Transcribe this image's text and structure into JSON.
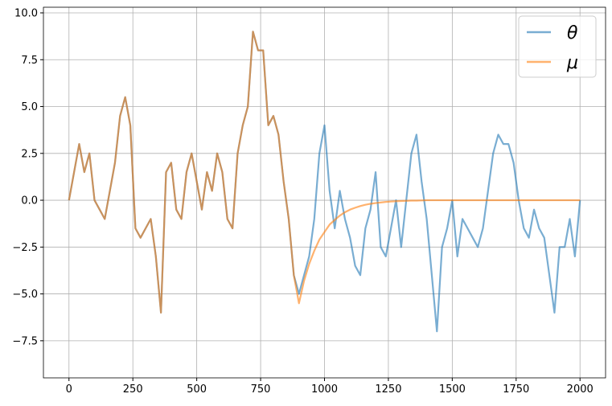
{
  "chart_data": {
    "type": "line",
    "x": [
      0,
      20,
      40,
      60,
      80,
      100,
      120,
      140,
      160,
      180,
      200,
      220,
      240,
      260,
      280,
      300,
      320,
      340,
      360,
      380,
      400,
      420,
      440,
      460,
      480,
      500,
      520,
      540,
      560,
      580,
      600,
      620,
      640,
      660,
      680,
      700,
      720,
      740,
      760,
      780,
      800,
      820,
      840,
      860,
      880,
      900,
      920,
      940,
      960,
      980,
      1000,
      1020,
      1040,
      1060,
      1080,
      1100,
      1120,
      1140,
      1160,
      1180,
      1200,
      1220,
      1240,
      1260,
      1280,
      1300,
      1320,
      1340,
      1360,
      1380,
      1400,
      1420,
      1440,
      1460,
      1480,
      1500,
      1520,
      1540,
      1560,
      1580,
      1600,
      1620,
      1640,
      1660,
      1680,
      1700,
      1720,
      1740,
      1760,
      1780,
      1800,
      1820,
      1840,
      1860,
      1880,
      1900,
      1920,
      1940,
      1960,
      1980,
      2000
    ],
    "series": [
      {
        "name": "θ",
        "color": "#1f77b4",
        "opacity": 0.6,
        "values": [
          0.0,
          1.5,
          3.0,
          1.5,
          2.5,
          0.0,
          -0.5,
          -1.0,
          0.5,
          2.0,
          4.5,
          5.5,
          4.0,
          -1.5,
          -2.0,
          -1.5,
          -1.0,
          -3.0,
          -6.0,
          1.5,
          2.0,
          -0.5,
          -1.0,
          1.5,
          2.5,
          1.0,
          -0.5,
          1.5,
          0.5,
          2.5,
          1.5,
          -1.0,
          -1.5,
          2.5,
          4.0,
          5.0,
          9.0,
          8.0,
          8.0,
          4.0,
          4.5,
          3.5,
          1.0,
          -1.0,
          -4.0,
          -5.0,
          -4.0,
          -3.0,
          -1.0,
          2.5,
          4.0,
          0.5,
          -1.5,
          0.5,
          -1.0,
          -2.0,
          -3.5,
          -4.0,
          -1.5,
          -0.5,
          1.5,
          -2.5,
          -3.0,
          -1.5,
          0.0,
          -2.5,
          0.0,
          2.5,
          3.5,
          1.0,
          -1.0,
          -4.0,
          -7.0,
          -2.5,
          -1.5,
          0.0,
          -3.0,
          -1.0,
          -1.5,
          -2.0,
          -2.5,
          -1.5,
          0.5,
          2.5,
          3.5,
          3.0,
          3.0,
          2.0,
          0.0,
          -1.5,
          -2.0,
          -0.5,
          -1.5,
          -2.0,
          -4.0,
          -6.0,
          -2.5,
          -2.5,
          -1.0,
          -3.0,
          0.0
        ]
      },
      {
        "name": "μ",
        "color": "#ff7f0e",
        "opacity": 0.6,
        "values": [
          0.0,
          1.5,
          3.0,
          1.5,
          2.5,
          0.0,
          -0.5,
          -1.0,
          0.5,
          2.0,
          4.5,
          5.5,
          4.0,
          -1.5,
          -2.0,
          -1.5,
          -1.0,
          -3.0,
          -6.0,
          1.5,
          2.0,
          -0.5,
          -1.0,
          1.5,
          2.5,
          1.0,
          -0.5,
          1.5,
          0.5,
          2.5,
          1.5,
          -1.0,
          -1.5,
          2.5,
          4.0,
          5.0,
          9.0,
          8.0,
          8.0,
          4.0,
          4.5,
          3.5,
          1.0,
          -1.0,
          -4.0,
          -5.5,
          -4.3,
          -3.4,
          -2.7,
          -2.1,
          -1.7,
          -1.3,
          -1.05,
          -0.82,
          -0.64,
          -0.5,
          -0.4,
          -0.31,
          -0.24,
          -0.19,
          -0.15,
          -0.12,
          -0.09,
          -0.07,
          -0.05,
          -0.04,
          -0.03,
          -0.02,
          -0.02,
          -0.01,
          0.0,
          0.0,
          0.0,
          0.0,
          0.0,
          0.0,
          0.0,
          0.0,
          0.0,
          0.0,
          0.0,
          0.0,
          0.0,
          0.0,
          0.0,
          0.0,
          0.0,
          0.0,
          0.0,
          0.0,
          0.0,
          0.0,
          0.0,
          0.0,
          0.0,
          0.0,
          0.0,
          0.0,
          0.0,
          0.0,
          0.0
        ]
      }
    ],
    "xlim": [
      -100,
      2100
    ],
    "ylim": [
      -9.48,
      10.3
    ],
    "xticks": [
      0,
      250,
      500,
      750,
      1000,
      1250,
      1500,
      1750,
      2000
    ],
    "yticks": [
      {
        "value": -7.5,
        "label": "−7.5"
      },
      {
        "value": -5.0,
        "label": "−5.0"
      },
      {
        "value": -2.5,
        "label": "−2.5"
      },
      {
        "value": 0.0,
        "label": "0.0"
      },
      2.5,
      {
        "value": 5.0,
        "label": "5.0"
      },
      7.5,
      {
        "value": 10.0,
        "label": "10.0"
      }
    ],
    "grid": true,
    "legend": "upper right"
  }
}
